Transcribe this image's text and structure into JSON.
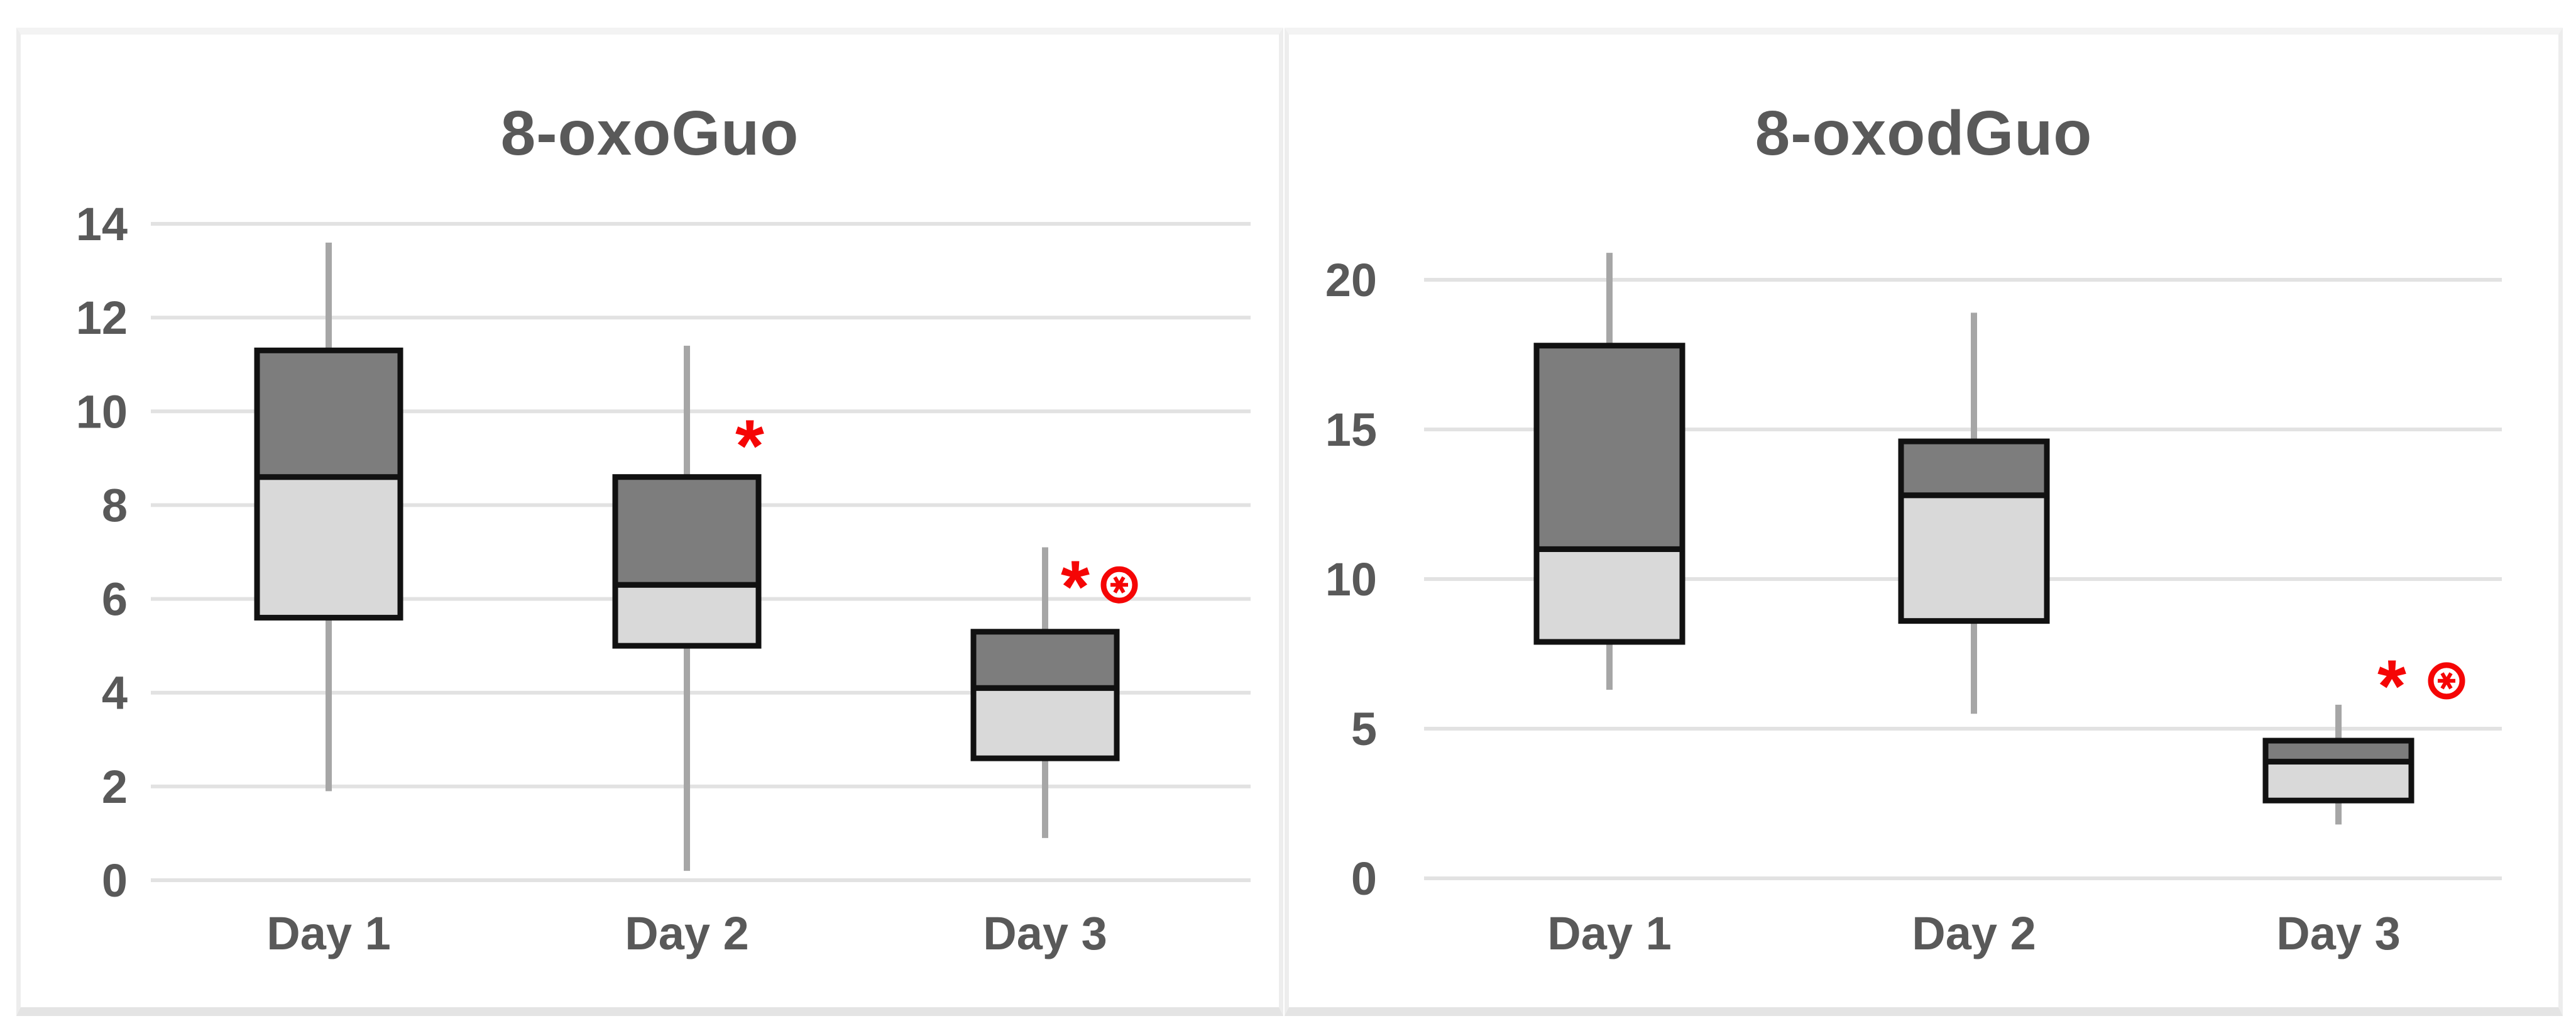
{
  "figure": {
    "background": "#ffffff",
    "panel_count": 2
  },
  "colors": {
    "text_label": "#595959",
    "gridline": "#e2e2e2",
    "whisker": "#a6a6a6",
    "box_border": "#111111",
    "box_upper_fill": "#7d7d7d",
    "box_lower_fill": "#d9d9d9",
    "annotation_red": "#f50505",
    "panel_border": "#ededed"
  },
  "chart_data": [
    {
      "type": "box",
      "title": "8-oxoGuo",
      "xlabel": "",
      "ylabel": "",
      "categories": [
        "Day 1",
        "Day 2",
        "Day 3"
      ],
      "ylim": [
        0,
        14
      ],
      "ytick_step": 2,
      "yticks": [
        0,
        2,
        4,
        6,
        8,
        10,
        12,
        14
      ],
      "grid": true,
      "legend": false,
      "box_model": "whisker-low / Q1 (light box) / median / Q3 (dark box) / whisker-high",
      "series": [
        {
          "category": "Day 1",
          "low": 1.9,
          "q1": 5.6,
          "median": 8.6,
          "q3": 11.3,
          "high": 13.6,
          "annotations": []
        },
        {
          "category": "Day 2",
          "low": 0.2,
          "q1": 5.0,
          "median": 6.3,
          "q3": 8.6,
          "high": 11.4,
          "annotations": [
            {
              "symbol": "asterisk",
              "value": 9.5,
              "dx": 100
            }
          ]
        },
        {
          "category": "Day 3",
          "low": 0.9,
          "q1": 2.6,
          "median": 4.1,
          "q3": 5.3,
          "high": 7.1,
          "annotations": [
            {
              "symbol": "asterisk",
              "value": 6.5,
              "dx": 48
            },
            {
              "symbol": "circled-asterisk",
              "value": 6.3,
              "dx": 118
            }
          ]
        }
      ]
    },
    {
      "type": "box",
      "title": "8-oxodGuo",
      "xlabel": "",
      "ylabel": "",
      "categories": [
        "Day 1",
        "Day 2",
        "Day 3"
      ],
      "ylim": [
        0,
        20
      ],
      "ytick_step": 5,
      "yticks": [
        0,
        5,
        10,
        15,
        20
      ],
      "grid": true,
      "legend": false,
      "box_model": "whisker-low / Q1 (light box) / median / Q3 (dark box) / whisker-high",
      "series": [
        {
          "category": "Day 1",
          "low": 6.3,
          "q1": 7.9,
          "median": 11.0,
          "q3": 17.8,
          "high": 20.9,
          "annotations": []
        },
        {
          "category": "Day 2",
          "low": 5.5,
          "q1": 8.6,
          "median": 12.8,
          "q3": 14.6,
          "high": 18.9,
          "annotations": []
        },
        {
          "category": "Day 3",
          "low": 1.8,
          "q1": 2.6,
          "median": 3.9,
          "q3": 4.6,
          "high": 5.8,
          "annotations": [
            {
              "symbol": "asterisk",
              "value": 6.8,
              "dx": 85
            },
            {
              "symbol": "circled-asterisk",
              "value": 6.6,
              "dx": 172
            }
          ]
        }
      ]
    }
  ]
}
